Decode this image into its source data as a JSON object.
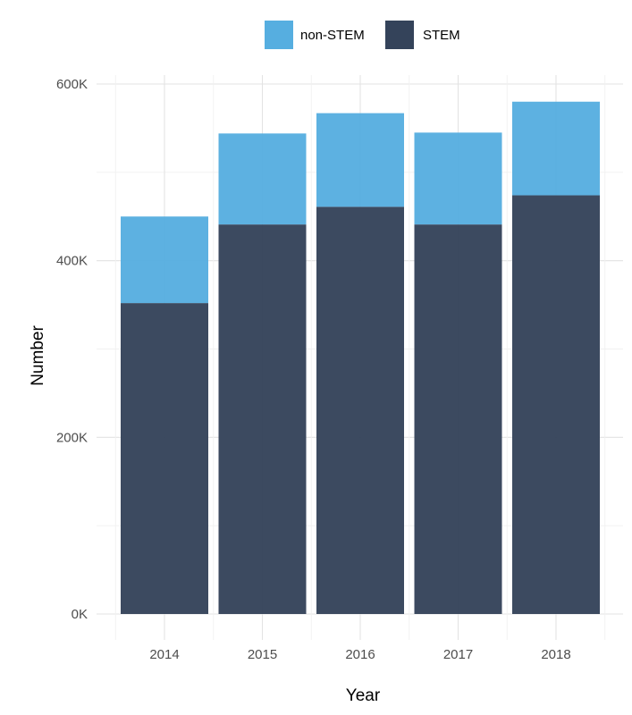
{
  "chart_data": {
    "type": "bar",
    "stacked": true,
    "xlabel": "Year",
    "ylabel": "Number",
    "categories": [
      "2014",
      "2015",
      "2016",
      "2017",
      "2018"
    ],
    "series": [
      {
        "name": "STEM",
        "values": [
          352000,
          441000,
          461000,
          441000,
          474000
        ],
        "color": "#34435a"
      },
      {
        "name": "non-STEM",
        "values": [
          98000,
          103000,
          106000,
          104000,
          106000
        ],
        "color": "#56aee0"
      }
    ],
    "ylim": [
      0,
      600000
    ],
    "yticks": [
      {
        "value": 0,
        "label": "0K"
      },
      {
        "value": 200000,
        "label": "200K"
      },
      {
        "value": 400000,
        "label": "400K"
      },
      {
        "value": 600000,
        "label": "600K"
      }
    ],
    "legend": {
      "position": "top",
      "entries": [
        {
          "label": "non-STEM",
          "color": "#56aee0"
        },
        {
          "label": "STEM",
          "color": "#34435a"
        }
      ]
    },
    "grid": true
  }
}
